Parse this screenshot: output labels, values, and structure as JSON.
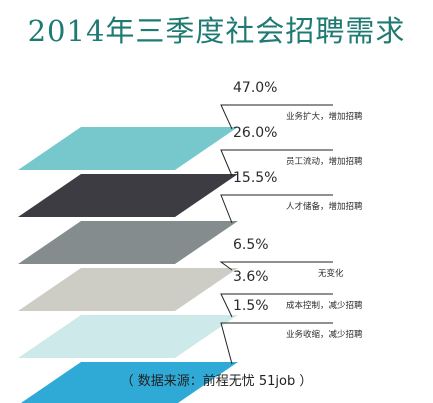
{
  "chart_data": {
    "type": "stacked-layers",
    "title": "2014年三季度社会招聘需求",
    "source": "（ 数据来源：前程无忧 51job ）",
    "items": [
      {
        "percent": "47.0%",
        "value": 47.0,
        "label": "业务扩大，增加招聘",
        "color": "#76c8cd"
      },
      {
        "percent": "26.0%",
        "value": 26.0,
        "label": "员工流动，增加招聘",
        "color": "#3c3c42"
      },
      {
        "percent": "15.5%",
        "value": 15.5,
        "label": "人才储备，增加招聘",
        "color": "#858c8e"
      },
      {
        "percent": "6.5%",
        "value": 6.5,
        "label": "无变化",
        "color": "#cdcdc6"
      },
      {
        "percent": "3.6%",
        "value": 3.6,
        "label": "成本控制，减少招聘",
        "color": "#cde9ea"
      },
      {
        "percent": "1.5%",
        "value": 1.5,
        "label": "业务收缩，减少招聘",
        "color": "#2fa9d6"
      }
    ]
  }
}
